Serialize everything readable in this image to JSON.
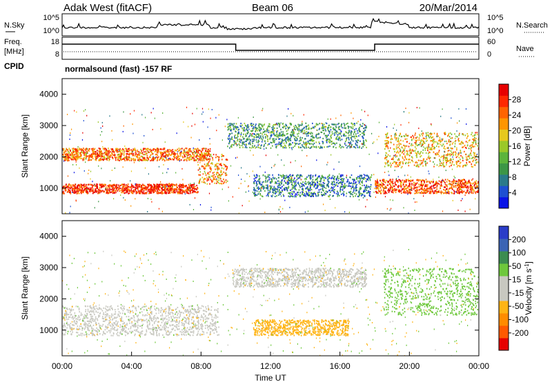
{
  "header": {
    "station": "Adak West (fitACF)",
    "beam": "Beam 06",
    "date": "20/Mar/2014"
  },
  "noise_panel": {
    "left_label": "N.Sky",
    "right_label": "N.Search",
    "left_ticks": [
      "10^5",
      "10^0"
    ],
    "right_ticks": [
      "10^5",
      "10^0"
    ]
  },
  "freq_panel": {
    "left_label_line1": "Freq.",
    "left_label_line2": "[MHz]",
    "right_label": "Nave",
    "left_ticks": [
      "18",
      "8"
    ],
    "right_ticks": [
      "60",
      "0"
    ],
    "freq_segments": [
      {
        "start": "00:00",
        "end": "10:00",
        "level": "high"
      },
      {
        "start": "10:00",
        "end": "18:00",
        "level": "low"
      },
      {
        "start": "18:00",
        "end": "24:00",
        "level": "high"
      }
    ]
  },
  "cpid": {
    "label": "CPID",
    "mode": "normalsound (fast) -157 RF"
  },
  "x_axis": {
    "label": "Time UT",
    "ticks": [
      "00:00",
      "04:00",
      "08:00",
      "12:00",
      "16:00",
      "20:00",
      "00:00"
    ]
  },
  "chart_data": [
    {
      "type": "heatmap",
      "title": "Power",
      "ylabel": "Slant Range [km]",
      "xlabel": "",
      "xlim": [
        0,
        24
      ],
      "ylim": [
        180,
        4500
      ],
      "y_ticks": [
        "1000",
        "2000",
        "3000",
        "4000"
      ],
      "colorbar": {
        "label": "Power [dB]",
        "ticks": [
          "4",
          "8",
          "12",
          "16",
          "20",
          "24",
          "28"
        ],
        "range": [
          0,
          32
        ],
        "colors": [
          "#0a14e6",
          "#1e50d2",
          "#2a7a8a",
          "#3c9646",
          "#5cb43c",
          "#9bc828",
          "#e6c81e",
          "#ff9600",
          "#ff6400",
          "#ff2800",
          "#e60000"
        ]
      },
      "bands": [
        {
          "t_start": 0.0,
          "t_end": 7.8,
          "r_start": 850,
          "r_end": 1150,
          "level": 28
        },
        {
          "t_start": 7.8,
          "t_end": 9.5,
          "r_start": 1150,
          "r_end": 2100,
          "level": 22
        },
        {
          "t_start": 0.0,
          "t_end": 8.5,
          "r_start": 1900,
          "r_end": 2300,
          "level": 24
        },
        {
          "t_start": 9.5,
          "t_end": 17.5,
          "r_start": 2300,
          "r_end": 3100,
          "level": 10
        },
        {
          "t_start": 11.0,
          "t_end": 17.8,
          "r_start": 750,
          "r_end": 1450,
          "level": 8
        },
        {
          "t_start": 18.0,
          "t_end": 24.0,
          "r_start": 850,
          "r_end": 1300,
          "level": 26
        },
        {
          "t_start": 18.5,
          "t_end": 24.0,
          "r_start": 1700,
          "r_end": 2800,
          "level": 20
        }
      ]
    },
    {
      "type": "heatmap",
      "title": "Velocity",
      "ylabel": "Slant Range [km]",
      "xlabel": "Time UT",
      "xlim": [
        0,
        24
      ],
      "ylim": [
        180,
        4500
      ],
      "y_ticks": [
        "1000",
        "2000",
        "3000",
        "4000"
      ],
      "colorbar": {
        "label": "Velocity [m s^-1]",
        "ticks": [
          "200",
          "100",
          "50",
          "15",
          "-15",
          "-50",
          "-100",
          "-200"
        ],
        "range": [
          -250,
          250
        ],
        "colors": [
          "#2a3cc8",
          "#3c64b4",
          "#3c8c50",
          "#6ec83c",
          "#c8c8c0",
          "#c8c8c0",
          "#ffb414",
          "#ff8c00",
          "#ff5a00",
          "#e60000"
        ]
      },
      "bands": [
        {
          "t_start": 0.0,
          "t_end": 9.0,
          "r_start": 850,
          "r_end": 1800,
          "velocity": 0
        },
        {
          "t_start": 9.8,
          "t_end": 17.5,
          "r_start": 2400,
          "r_end": 3000,
          "velocity": -30
        },
        {
          "t_start": 11.0,
          "t_end": 16.5,
          "r_start": 850,
          "r_end": 1350,
          "velocity": -60
        },
        {
          "t_start": 18.5,
          "t_end": 24.0,
          "r_start": 1500,
          "r_end": 3000,
          "velocity": 60
        }
      ]
    }
  ]
}
